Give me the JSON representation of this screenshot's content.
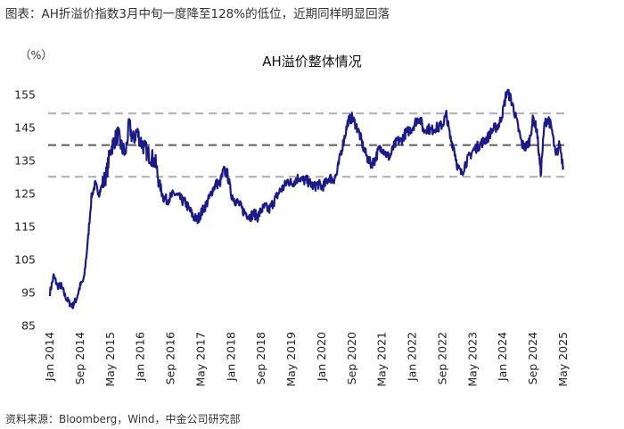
{
  "header": {
    "caption": "图表：AH折溢价指数3月中旬一度降至128%的低位，近期同样明显回落"
  },
  "footer": {
    "source": "资料来源：Bloomberg，Wind，中金公司研究部"
  },
  "chart_data": {
    "type": "line",
    "title": "AH溢价整体情况",
    "unit": "（%）",
    "ylim": [
      85,
      158
    ],
    "yticks": [
      85,
      95,
      105,
      115,
      125,
      135,
      145,
      155
    ],
    "xlim": [
      "2014-01",
      "2025-05"
    ],
    "xticks": [
      "Jan 2014",
      "Sep 2014",
      "May 2015",
      "Jan 2016",
      "Sep 2016",
      "May 2017",
      "Jan 2018",
      "Sep 2018",
      "May 2019",
      "Jan 2020",
      "Sep 2020",
      "May 2021",
      "Jan 2022",
      "Sep 2022",
      "May 2023",
      "Jan 2024",
      "Sep 2024",
      "May 2025"
    ],
    "grid": false,
    "colors": {
      "series": "#1a1a8c",
      "mean": "#666666",
      "band": "#b3b3b3"
    },
    "reference_lines": [
      {
        "kind": "mean_plus_1sd",
        "value": 149.3
      },
      {
        "kind": "mean",
        "value": 139.7
      },
      {
        "kind": "mean_minus_1sd",
        "value": 130.1
      }
    ],
    "series": [
      {
        "x": [
          "2014-01",
          "2014-02",
          "2014-03",
          "2014-04",
          "2014-05",
          "2014-06",
          "2014-07",
          "2014-08",
          "2014-09",
          "2014-10",
          "2014-11",
          "2014-12",
          "2015-01",
          "2015-02",
          "2015-03",
          "2015-04",
          "2015-05",
          "2015-06",
          "2015-07",
          "2015-08",
          "2015-09",
          "2015-10",
          "2015-11",
          "2015-12",
          "2016-01",
          "2016-02",
          "2016-03",
          "2016-04",
          "2016-05",
          "2016-06",
          "2016-07",
          "2016-08",
          "2016-09",
          "2016-10",
          "2016-11",
          "2016-12",
          "2017-01",
          "2017-02",
          "2017-03",
          "2017-04",
          "2017-05",
          "2017-06",
          "2017-07",
          "2017-08",
          "2017-09",
          "2017-10",
          "2017-11",
          "2017-12",
          "2018-01",
          "2018-02",
          "2018-03",
          "2018-04",
          "2018-05",
          "2018-06",
          "2018-07",
          "2018-08",
          "2018-09",
          "2018-10",
          "2018-11",
          "2018-12",
          "2019-01",
          "2019-02",
          "2019-03",
          "2019-04",
          "2019-05",
          "2019-06",
          "2019-07",
          "2019-08",
          "2019-09",
          "2019-10",
          "2019-11",
          "2019-12",
          "2020-01",
          "2020-02",
          "2020-03",
          "2020-04",
          "2020-05",
          "2020-06",
          "2020-07",
          "2020-08",
          "2020-09",
          "2020-10",
          "2020-11",
          "2020-12",
          "2021-01",
          "2021-02",
          "2021-03",
          "2021-04",
          "2021-05",
          "2021-06",
          "2021-07",
          "2021-08",
          "2021-09",
          "2021-10",
          "2021-11",
          "2021-12",
          "2022-01",
          "2022-02",
          "2022-03",
          "2022-04",
          "2022-05",
          "2022-06",
          "2022-07",
          "2022-08",
          "2022-09",
          "2022-10",
          "2022-11",
          "2022-12",
          "2023-01",
          "2023-02",
          "2023-03",
          "2023-04",
          "2023-05",
          "2023-06",
          "2023-07",
          "2023-08",
          "2023-09",
          "2023-10",
          "2023-11",
          "2023-12",
          "2024-01",
          "2024-02",
          "2024-03",
          "2024-04",
          "2024-05",
          "2024-06",
          "2024-07",
          "2024-08",
          "2024-09",
          "2024-10",
          "2024-11",
          "2024-12",
          "2025-01",
          "2025-02",
          "2025-03",
          "2025-04",
          "2025-05"
        ],
        "values": [
          95,
          100,
          97,
          97,
          94,
          92,
          91,
          93,
          97,
          99,
          110,
          124,
          128,
          125,
          128,
          131,
          138,
          141,
          143,
          139,
          137,
          146,
          141,
          144,
          141,
          139,
          137,
          136,
          134,
          128,
          124,
          123,
          124,
          125,
          124,
          123,
          122,
          120,
          118,
          117,
          119,
          121,
          123,
          126,
          128,
          128,
          132,
          131,
          125,
          123,
          122,
          120,
          119,
          118,
          119,
          118,
          120,
          121,
          120,
          122,
          124,
          126,
          127,
          129,
          128,
          129,
          130,
          129,
          129,
          128,
          127,
          128,
          127,
          128,
          130,
          129,
          131,
          137,
          142,
          147,
          148,
          146,
          143,
          139,
          136,
          134,
          135,
          138,
          139,
          137,
          136,
          139,
          141,
          141,
          143,
          144,
          145,
          147,
          148,
          144,
          145,
          144,
          145,
          145,
          146,
          149,
          142,
          139,
          133,
          131,
          134,
          136,
          138,
          139,
          140,
          141,
          142,
          144,
          145,
          146,
          150,
          156,
          154,
          150,
          145,
          140,
          139,
          141,
          148,
          144,
          131,
          146,
          148,
          144,
          136,
          140,
          133
        ]
      }
    ]
  }
}
